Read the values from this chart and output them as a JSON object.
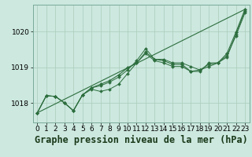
{
  "background_color": "#cce8df",
  "grid_color": "#aaccbb",
  "line_color": "#2d6e3e",
  "marker_color": "#2d6e3e",
  "title": "Graphe pression niveau de la mer (hPa)",
  "ylim": [
    1017.45,
    1020.75
  ],
  "xlim": [
    -0.5,
    23.5
  ],
  "yticks": [
    1018,
    1019,
    1020
  ],
  "xticks": [
    0,
    1,
    2,
    3,
    4,
    5,
    6,
    7,
    8,
    9,
    10,
    11,
    12,
    13,
    14,
    15,
    16,
    17,
    18,
    19,
    20,
    21,
    22,
    23
  ],
  "series1": [
    1017.72,
    1018.2,
    1018.18,
    1018.0,
    1017.78,
    1018.22,
    1018.38,
    1018.32,
    1018.38,
    1018.52,
    1018.82,
    1019.12,
    1019.38,
    1019.18,
    1019.12,
    1019.02,
    1019.02,
    1018.88,
    1018.88,
    1019.12,
    1019.12,
    1019.32,
    1019.88,
    1020.52
  ],
  "series2": [
    1017.72,
    1018.2,
    1018.18,
    1018.0,
    1017.78,
    1018.22,
    1018.42,
    1018.48,
    1018.58,
    1018.72,
    1018.92,
    1019.18,
    1019.52,
    1019.22,
    1019.22,
    1019.12,
    1019.12,
    1019.02,
    1018.92,
    1019.08,
    1019.12,
    1019.28,
    1019.92,
    1020.58
  ],
  "series3": [
    1017.72,
    1018.2,
    1018.18,
    1018.0,
    1017.78,
    1018.22,
    1018.42,
    1018.52,
    1018.62,
    1018.78,
    1018.98,
    1019.12,
    1019.42,
    1019.22,
    1019.18,
    1019.08,
    1019.08,
    1018.88,
    1018.92,
    1019.02,
    1019.12,
    1019.38,
    1019.98,
    1020.62
  ],
  "trend_x": [
    0,
    23
  ],
  "trend_y": [
    1017.72,
    1020.62
  ],
  "title_fontsize": 8.5,
  "tick_fontsize": 6.5
}
